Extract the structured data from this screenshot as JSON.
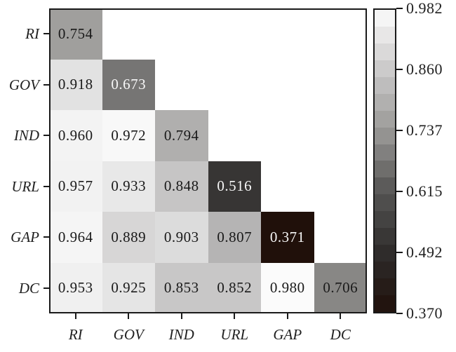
{
  "figure": {
    "background": "#ffffff",
    "axis_color": "#1a1a1a",
    "label_color": "#1f1f1f"
  },
  "chart_data": {
    "type": "heatmap",
    "title": "",
    "xlabel": "",
    "ylabel": "",
    "row_labels": [
      "RI",
      "GOV",
      "IND",
      "URL",
      "GAP",
      "DC"
    ],
    "col_labels": [
      "RI",
      "GOV",
      "IND",
      "URL",
      "GAP",
      "DC"
    ],
    "matrix": [
      [
        0.754,
        null,
        null,
        null,
        null,
        null
      ],
      [
        0.918,
        0.673,
        null,
        null,
        null,
        null
      ],
      [
        0.96,
        0.972,
        0.794,
        null,
        null,
        null
      ],
      [
        0.957,
        0.933,
        0.848,
        0.516,
        null,
        null
      ],
      [
        0.964,
        0.889,
        0.903,
        0.807,
        0.371,
        null
      ],
      [
        0.953,
        0.925,
        0.853,
        0.852,
        0.98,
        0.706
      ]
    ],
    "value_format_decimals": 3,
    "white_text_below_value": 0.69,
    "cell_text_color_dark": "#1a1a1a",
    "cell_text_color_light": "#f7f7f7",
    "grid": false,
    "colorbar": {
      "position": "right",
      "vmin": 0.37,
      "vmax": 0.982,
      "bands": 18,
      "tick_labels": [
        "0.982",
        "0.860",
        "0.737",
        "0.615",
        "0.492",
        "0.370"
      ],
      "stops": [
        [
          0.37,
          "#20100a"
        ],
        [
          0.492,
          "#2f2d2c"
        ],
        [
          0.615,
          "#575655"
        ],
        [
          0.737,
          "#999896"
        ],
        [
          0.86,
          "#cbcaca"
        ],
        [
          0.982,
          "#fcfcfc"
        ]
      ]
    }
  }
}
